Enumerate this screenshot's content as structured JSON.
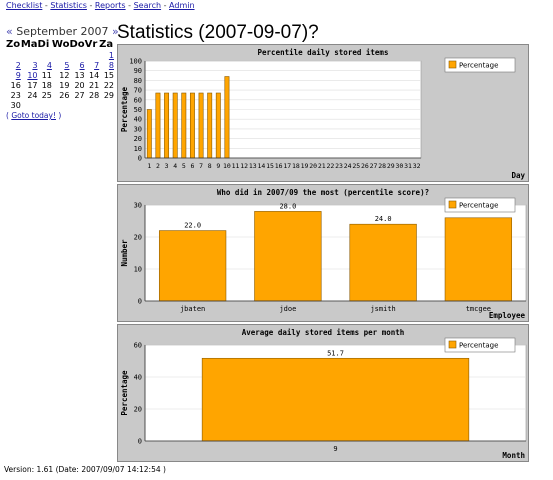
{
  "nav": [
    {
      "label": "Checklist"
    },
    {
      "label": "Statistics"
    },
    {
      "label": "Reports"
    },
    {
      "label": "Search"
    },
    {
      "label": "Admin"
    }
  ],
  "calendar": {
    "prev": "«",
    "month": "September 2007",
    "next": "»",
    "weekdays": [
      "Zo",
      "Ma",
      "Di",
      "Wo",
      "Do",
      "Vr",
      "Za"
    ],
    "weeks": [
      [
        "",
        "",
        "",
        "",
        "",
        "",
        "1"
      ],
      [
        "2",
        "3",
        "4",
        "5",
        "6",
        "7",
        "8"
      ],
      [
        "9",
        "10",
        "11",
        "12",
        "13",
        "14",
        "15"
      ],
      [
        "16",
        "17",
        "18",
        "19",
        "20",
        "21",
        "22"
      ],
      [
        "23",
        "24",
        "25",
        "26",
        "27",
        "28",
        "29"
      ],
      [
        "30",
        "",
        "",
        "",
        "",
        "",
        ""
      ]
    ],
    "linked_days": [
      "1",
      "2",
      "3",
      "4",
      "5",
      "6",
      "7",
      "8",
      "9",
      "10"
    ],
    "today_open": "( ",
    "today_label": "Goto today!",
    "today_close": " )"
  },
  "page_title": "Statistics (2007-09-07)?",
  "footer": "Version: 1.61 (Date: 2007/09/07 14:12:54 )",
  "colors": {
    "bar": "#ffa500",
    "bar_stroke": "#8a5a00",
    "panel": "#c9c9c9",
    "plot_bg": "#ffffff",
    "grid": "#dddddd"
  },
  "chart_data": [
    {
      "type": "bar",
      "title": "Percentile daily stored items",
      "xlabel": "Day",
      "ylabel": "Percentage",
      "legend": [
        "Percentage"
      ],
      "legend_position": "top-right",
      "ylim": [
        0,
        100
      ],
      "yticks": [
        0,
        10,
        20,
        30,
        40,
        50,
        60,
        70,
        80,
        90,
        100
      ],
      "categories": [
        "1",
        "2",
        "3",
        "4",
        "5",
        "6",
        "7",
        "8",
        "9",
        "10",
        "11",
        "12",
        "13",
        "14",
        "15",
        "16",
        "17",
        "18",
        "19",
        "20",
        "21",
        "22",
        "23",
        "24",
        "25",
        "26",
        "27",
        "28",
        "29",
        "30",
        "31",
        "32"
      ],
      "values": [
        50,
        67,
        67,
        67,
        67,
        67,
        67,
        67,
        67,
        84,
        null,
        null,
        null,
        null,
        null,
        null,
        null,
        null,
        null,
        null,
        null,
        null,
        null,
        null,
        null,
        null,
        null,
        null,
        null,
        null,
        null,
        null
      ],
      "value_labels": false,
      "grid": true
    },
    {
      "type": "bar",
      "title": "Who did in 2007/09 the most (percentile score)?",
      "xlabel": "Employee",
      "ylabel": "Number",
      "legend": [
        "Percentage"
      ],
      "legend_position": "top-right",
      "ylim": [
        0,
        30
      ],
      "yticks": [
        0,
        10,
        20,
        30
      ],
      "categories": [
        "jbaten",
        "jdoe",
        "jsmith",
        "tmcgee"
      ],
      "values": [
        22.0,
        28.0,
        24.0,
        26.0
      ],
      "value_texts": [
        "22.0",
        "28.0",
        "24.0",
        ""
      ],
      "value_labels": true,
      "grid": true
    },
    {
      "type": "bar",
      "title": "Average daily stored items per month",
      "xlabel": "Month",
      "ylabel": "Percentage",
      "legend": [
        "Percentage"
      ],
      "legend_position": "top-right",
      "ylim": [
        0,
        60
      ],
      "yticks": [
        0,
        20,
        40,
        60
      ],
      "categories": [
        "9"
      ],
      "values": [
        51.7
      ],
      "value_texts": [
        "51.7"
      ],
      "value_labels": true,
      "grid": true
    }
  ]
}
